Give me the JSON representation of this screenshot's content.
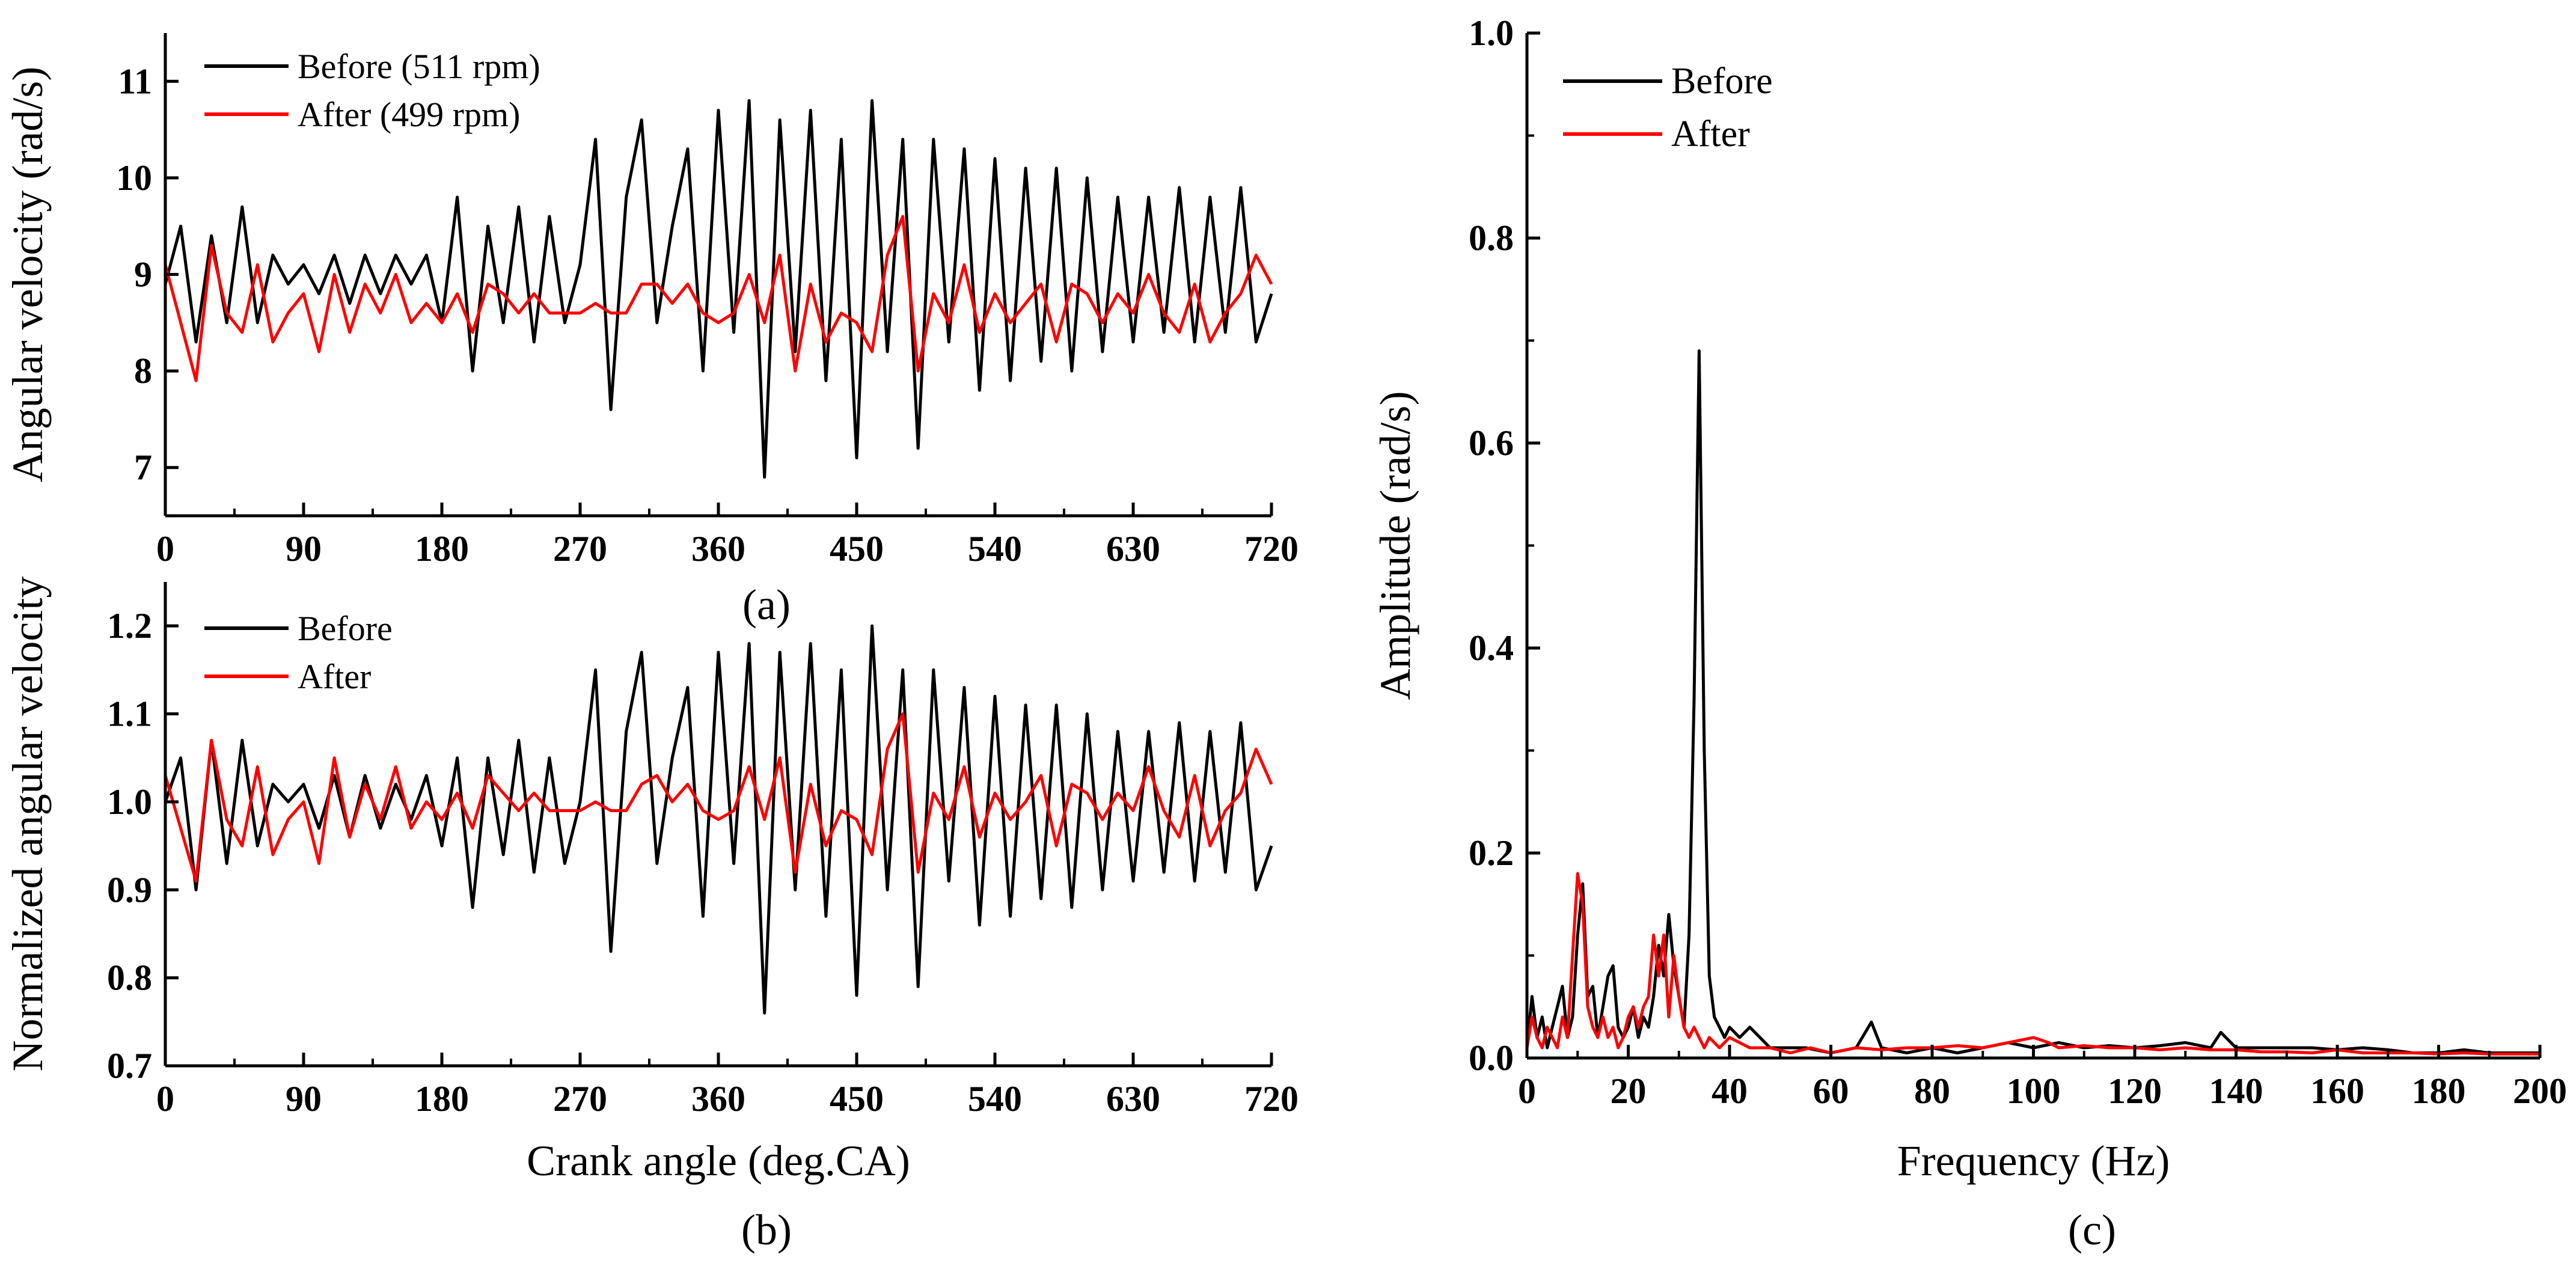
{
  "chart_data": [
    {
      "panel_label": "(a)",
      "type": "line",
      "title": "",
      "xlabel": "",
      "ylabel": "Angular velocity (rad/s)",
      "xlim": [
        0,
        720
      ],
      "ylim": [
        6.5,
        11.5
      ],
      "xticks": [
        0,
        90,
        180,
        270,
        360,
        450,
        540,
        630,
        720
      ],
      "yticks": [
        7,
        8,
        9,
        10,
        11
      ],
      "legend_position": "top-left",
      "series": [
        {
          "name": "Before (511 rpm)",
          "color": "#000000",
          "x": [
            0,
            10,
            20,
            30,
            40,
            50,
            60,
            70,
            80,
            90,
            100,
            110,
            120,
            130,
            140,
            150,
            160,
            170,
            180,
            190,
            200,
            210,
            220,
            230,
            240,
            250,
            260,
            270,
            280,
            290,
            300,
            310,
            320,
            330,
            340,
            350,
            360,
            370,
            380,
            390,
            400,
            410,
            420,
            430,
            440,
            450,
            460,
            470,
            480,
            490,
            500,
            510,
            520,
            530,
            540,
            550,
            560,
            570,
            580,
            590,
            600,
            610,
            620,
            630,
            640,
            650,
            660,
            670,
            680,
            690,
            700,
            710,
            720
          ],
          "y": [
            8.9,
            9.5,
            8.3,
            9.4,
            8.5,
            9.7,
            8.5,
            9.2,
            8.9,
            9.1,
            8.8,
            9.2,
            8.7,
            9.2,
            8.8,
            9.2,
            8.9,
            9.2,
            8.5,
            9.8,
            8.0,
            9.5,
            8.5,
            9.7,
            8.3,
            9.6,
            8.5,
            9.1,
            10.4,
            7.6,
            9.8,
            10.6,
            8.5,
            9.5,
            10.3,
            8.0,
            10.7,
            8.4,
            10.8,
            6.9,
            10.6,
            8.2,
            10.7,
            7.9,
            10.4,
            7.1,
            10.8,
            8.2,
            10.4,
            7.2,
            10.4,
            8.3,
            10.3,
            7.8,
            10.2,
            7.9,
            10.1,
            8.1,
            10.1,
            8.0,
            10.0,
            8.2,
            9.8,
            8.3,
            9.8,
            8.4,
            9.9,
            8.3,
            9.8,
            8.4,
            9.9,
            8.3,
            8.8
          ]
        },
        {
          "name": "After (499 rpm)",
          "color": "#ff0000",
          "x": [
            0,
            10,
            20,
            30,
            40,
            50,
            60,
            70,
            80,
            90,
            100,
            110,
            120,
            130,
            140,
            150,
            160,
            170,
            180,
            190,
            200,
            210,
            220,
            230,
            240,
            250,
            260,
            270,
            280,
            290,
            300,
            310,
            320,
            330,
            340,
            350,
            360,
            370,
            380,
            390,
            400,
            410,
            420,
            430,
            440,
            450,
            460,
            470,
            480,
            490,
            500,
            510,
            520,
            530,
            540,
            550,
            560,
            570,
            580,
            590,
            600,
            610,
            620,
            630,
            640,
            650,
            660,
            670,
            680,
            690,
            700,
            710,
            720
          ],
          "y": [
            9.1,
            8.5,
            7.9,
            9.3,
            8.6,
            8.4,
            9.1,
            8.3,
            8.6,
            8.8,
            8.2,
            9.0,
            8.4,
            8.9,
            8.6,
            9.0,
            8.5,
            8.7,
            8.5,
            8.8,
            8.4,
            8.9,
            8.8,
            8.6,
            8.8,
            8.6,
            8.6,
            8.6,
            8.7,
            8.6,
            8.6,
            8.9,
            8.9,
            8.7,
            8.9,
            8.6,
            8.5,
            8.6,
            9.0,
            8.5,
            9.2,
            8.0,
            8.9,
            8.3,
            8.6,
            8.5,
            8.2,
            9.2,
            9.6,
            8.0,
            8.8,
            8.5,
            9.1,
            8.4,
            8.8,
            8.5,
            8.7,
            8.9,
            8.3,
            8.9,
            8.8,
            8.5,
            8.8,
            8.6,
            9.0,
            8.6,
            8.4,
            8.9,
            8.3,
            8.6,
            8.8,
            9.2,
            8.9
          ]
        }
      ]
    },
    {
      "panel_label": "(b)",
      "type": "line",
      "title": "",
      "xlabel": "Crank angle (deg.CA)",
      "ylabel": "Normalized angular velocity",
      "xlim": [
        0,
        720
      ],
      "ylim": [
        0.7,
        1.25
      ],
      "xticks": [
        0,
        90,
        180,
        270,
        360,
        450,
        540,
        630,
        720
      ],
      "yticks": [
        0.7,
        0.8,
        0.9,
        1.0,
        1.1,
        1.2
      ],
      "legend_position": "top-left",
      "series": [
        {
          "name": "Before",
          "color": "#000000",
          "x": [
            0,
            10,
            20,
            30,
            40,
            50,
            60,
            70,
            80,
            90,
            100,
            110,
            120,
            130,
            140,
            150,
            160,
            170,
            180,
            190,
            200,
            210,
            220,
            230,
            240,
            250,
            260,
            270,
            280,
            290,
            300,
            310,
            320,
            330,
            340,
            350,
            360,
            370,
            380,
            390,
            400,
            410,
            420,
            430,
            440,
            450,
            460,
            470,
            480,
            490,
            500,
            510,
            520,
            530,
            540,
            550,
            560,
            570,
            580,
            590,
            600,
            610,
            620,
            630,
            640,
            650,
            660,
            670,
            680,
            690,
            700,
            710,
            720
          ],
          "y": [
            1.0,
            1.05,
            0.9,
            1.07,
            0.93,
            1.07,
            0.95,
            1.02,
            1.0,
            1.02,
            0.97,
            1.03,
            0.96,
            1.03,
            0.97,
            1.02,
            0.98,
            1.03,
            0.95,
            1.05,
            0.88,
            1.05,
            0.94,
            1.07,
            0.92,
            1.05,
            0.93,
            1.0,
            1.15,
            0.83,
            1.08,
            1.17,
            0.93,
            1.05,
            1.13,
            0.87,
            1.17,
            0.93,
            1.18,
            0.76,
            1.17,
            0.9,
            1.18,
            0.87,
            1.15,
            0.78,
            1.2,
            0.9,
            1.15,
            0.79,
            1.15,
            0.91,
            1.13,
            0.86,
            1.12,
            0.87,
            1.11,
            0.89,
            1.11,
            0.88,
            1.1,
            0.9,
            1.08,
            0.91,
            1.08,
            0.92,
            1.09,
            0.91,
            1.08,
            0.92,
            1.09,
            0.9,
            0.95
          ]
        },
        {
          "name": "After",
          "color": "#ff0000",
          "x": [
            0,
            10,
            20,
            30,
            40,
            50,
            60,
            70,
            80,
            90,
            100,
            110,
            120,
            130,
            140,
            150,
            160,
            170,
            180,
            190,
            200,
            210,
            220,
            230,
            240,
            250,
            260,
            270,
            280,
            290,
            300,
            310,
            320,
            330,
            340,
            350,
            360,
            370,
            380,
            390,
            400,
            410,
            420,
            430,
            440,
            450,
            460,
            470,
            480,
            490,
            500,
            510,
            520,
            530,
            540,
            550,
            560,
            570,
            580,
            590,
            600,
            610,
            620,
            630,
            640,
            650,
            660,
            670,
            680,
            690,
            700,
            710,
            720
          ],
          "y": [
            1.03,
            0.97,
            0.91,
            1.07,
            0.98,
            0.95,
            1.04,
            0.94,
            0.98,
            1.0,
            0.93,
            1.05,
            0.96,
            1.02,
            0.98,
            1.04,
            0.97,
            1.0,
            0.98,
            1.01,
            0.97,
            1.03,
            1.01,
            0.99,
            1.01,
            0.99,
            0.99,
            0.99,
            1.0,
            0.99,
            0.99,
            1.02,
            1.03,
            1.0,
            1.02,
            0.99,
            0.98,
            0.99,
            1.04,
            0.98,
            1.05,
            0.92,
            1.02,
            0.95,
            0.99,
            0.98,
            0.94,
            1.06,
            1.1,
            0.92,
            1.01,
            0.98,
            1.04,
            0.96,
            1.01,
            0.98,
            1.0,
            1.03,
            0.95,
            1.02,
            1.01,
            0.98,
            1.01,
            0.99,
            1.04,
            0.99,
            0.96,
            1.03,
            0.95,
            0.99,
            1.01,
            1.06,
            1.02
          ]
        }
      ]
    },
    {
      "panel_label": "(c)",
      "type": "line",
      "title": "",
      "xlabel": "Frequency (Hz)",
      "ylabel": "Amplitude (rad/s)",
      "xlim": [
        0,
        200
      ],
      "ylim": [
        0,
        1.0
      ],
      "xticks": [
        0,
        20,
        40,
        60,
        80,
        100,
        120,
        140,
        160,
        180,
        200
      ],
      "yticks": [
        0.0,
        0.2,
        0.4,
        0.6,
        0.8,
        1.0
      ],
      "legend_position": "top-left",
      "series": [
        {
          "name": "Before",
          "color": "#000000",
          "x": [
            0,
            1,
            2,
            3,
            4,
            5,
            6,
            7,
            8,
            9,
            10,
            11,
            12,
            13,
            14,
            15,
            16,
            17,
            18,
            19,
            20,
            21,
            22,
            23,
            24,
            25,
            26,
            27,
            28,
            29,
            30,
            31,
            32,
            33,
            34,
            35,
            36,
            37,
            38,
            39,
            40,
            42,
            44,
            46,
            48,
            50,
            55,
            60,
            65,
            68,
            70,
            75,
            80,
            85,
            90,
            95,
            100,
            105,
            110,
            115,
            120,
            125,
            130,
            135,
            137,
            140,
            145,
            150,
            155,
            160,
            165,
            170,
            175,
            180,
            185,
            190,
            195,
            200
          ],
          "y": [
            0.01,
            0.06,
            0.02,
            0.04,
            0.01,
            0.03,
            0.05,
            0.07,
            0.02,
            0.04,
            0.12,
            0.17,
            0.06,
            0.07,
            0.02,
            0.05,
            0.08,
            0.09,
            0.03,
            0.02,
            0.03,
            0.05,
            0.02,
            0.04,
            0.03,
            0.06,
            0.11,
            0.08,
            0.14,
            0.09,
            0.06,
            0.03,
            0.12,
            0.35,
            0.69,
            0.3,
            0.08,
            0.04,
            0.03,
            0.02,
            0.03,
            0.02,
            0.03,
            0.02,
            0.01,
            0.01,
            0.01,
            0.005,
            0.01,
            0.035,
            0.01,
            0.005,
            0.01,
            0.005,
            0.01,
            0.015,
            0.01,
            0.015,
            0.01,
            0.012,
            0.01,
            0.012,
            0.015,
            0.01,
            0.025,
            0.01,
            0.01,
            0.01,
            0.01,
            0.008,
            0.01,
            0.008,
            0.005,
            0.005,
            0.008,
            0.005,
            0.005,
            0.005
          ]
        },
        {
          "name": "After",
          "color": "#ff0000",
          "x": [
            0,
            1,
            2,
            3,
            4,
            5,
            6,
            7,
            8,
            9,
            10,
            11,
            12,
            13,
            14,
            15,
            16,
            17,
            18,
            19,
            20,
            21,
            22,
            23,
            24,
            25,
            26,
            27,
            28,
            29,
            30,
            31,
            32,
            33,
            34,
            35,
            36,
            38,
            40,
            44,
            48,
            52,
            56,
            60,
            65,
            70,
            75,
            80,
            85,
            90,
            95,
            100,
            103,
            105,
            110,
            115,
            120,
            125,
            130,
            135,
            140,
            145,
            150,
            155,
            160,
            165,
            170,
            175,
            180,
            185,
            190,
            195,
            200
          ],
          "y": [
            0.01,
            0.04,
            0.02,
            0.01,
            0.03,
            0.02,
            0.01,
            0.04,
            0.02,
            0.1,
            0.18,
            0.15,
            0.05,
            0.03,
            0.02,
            0.04,
            0.02,
            0.03,
            0.01,
            0.02,
            0.04,
            0.05,
            0.03,
            0.05,
            0.06,
            0.12,
            0.08,
            0.12,
            0.04,
            0.1,
            0.06,
            0.03,
            0.02,
            0.03,
            0.02,
            0.01,
            0.02,
            0.01,
            0.02,
            0.01,
            0.01,
            0.005,
            0.01,
            0.005,
            0.01,
            0.008,
            0.01,
            0.01,
            0.012,
            0.01,
            0.015,
            0.02,
            0.015,
            0.01,
            0.012,
            0.01,
            0.01,
            0.008,
            0.01,
            0.008,
            0.008,
            0.006,
            0.006,
            0.005,
            0.008,
            0.005,
            0.005,
            0.005,
            0.004,
            0.005,
            0.004,
            0.004,
            0.004
          ]
        }
      ]
    }
  ]
}
